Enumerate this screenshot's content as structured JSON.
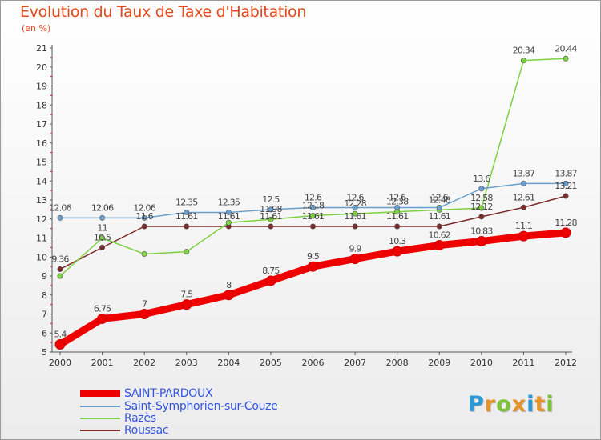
{
  "header": {
    "title": "Evolution du Taux de Taxe d'Habitation",
    "subtitle": "(en %)"
  },
  "logo": {
    "text": "Proxiti",
    "letter_colors": [
      "#2b9bd8",
      "#e8932a",
      "#7cc23a",
      "#e8932a",
      "#2b9bd8",
      "#e8932a",
      "#7cc23a"
    ]
  },
  "chart_data": {
    "type": "line",
    "x": [
      "2000",
      "2001",
      "2002",
      "2003",
      "2004",
      "2005",
      "2006",
      "2007",
      "2008",
      "2009",
      "2010",
      "2011",
      "2012"
    ],
    "ylim": [
      5,
      21
    ],
    "yticks": [
      "5",
      "6",
      "7",
      "8",
      "9",
      "10",
      "11",
      "12",
      "13",
      "14",
      "15",
      "16",
      "17",
      "18",
      "19",
      "20",
      "21"
    ],
    "grid": false,
    "legend_position": "bottom-left",
    "series": [
      {
        "name": "SAINT-PARDOUX",
        "color": "#ee0000",
        "values": [
          5.4,
          6.75,
          7,
          7.5,
          8,
          8.75,
          9.5,
          9.9,
          10.3,
          10.62,
          10.83,
          11.1,
          11.28
        ],
        "labels": [
          "5.4",
          "6.75",
          "7",
          "7.5",
          "8",
          "8.75",
          "9.5",
          "9.9",
          "10.3",
          "10.62",
          "10.83",
          "11.1",
          "11.28"
        ]
      },
      {
        "name": "Saint-Symphorien-sur-Couze",
        "color": "#6a9fcd",
        "values": [
          12.06,
          12.06,
          12.06,
          12.35,
          12.35,
          12.5,
          12.6,
          12.6,
          12.6,
          12.6,
          13.6,
          13.87,
          13.87
        ],
        "labels": [
          "12.06",
          "12.06",
          "12.06",
          "12.35",
          "12.35",
          "12.5",
          "12.6",
          "12.6",
          "12.6",
          "12.6",
          "13.6",
          "13.87",
          "13.87"
        ]
      },
      {
        "name": "Razès",
        "color": "#7dd13f",
        "values": [
          9,
          11,
          10.16,
          10.28,
          11.81,
          11.98,
          12.18,
          12.28,
          12.38,
          12.48,
          12.58,
          20.34,
          20.44
        ],
        "labels": [
          "",
          "11",
          "",
          "",
          "",
          "11.98",
          "12.18",
          "12.28",
          "12.38",
          "12.48",
          "12.58",
          "20.34",
          "20.44"
        ]
      },
      {
        "name": "Roussac",
        "color": "#7a2a2a",
        "values": [
          9.36,
          10.5,
          11.61,
          11.61,
          11.61,
          11.61,
          11.61,
          11.61,
          11.61,
          11.61,
          12.12,
          12.61,
          13.21
        ],
        "labels": [
          "9.36",
          "10.5",
          "11.6",
          "11.61",
          "11.61",
          "11.61",
          "11.61",
          "11.61",
          "11.61",
          "11.61",
          "12.12",
          "12.61",
          "13.21"
        ]
      }
    ]
  }
}
